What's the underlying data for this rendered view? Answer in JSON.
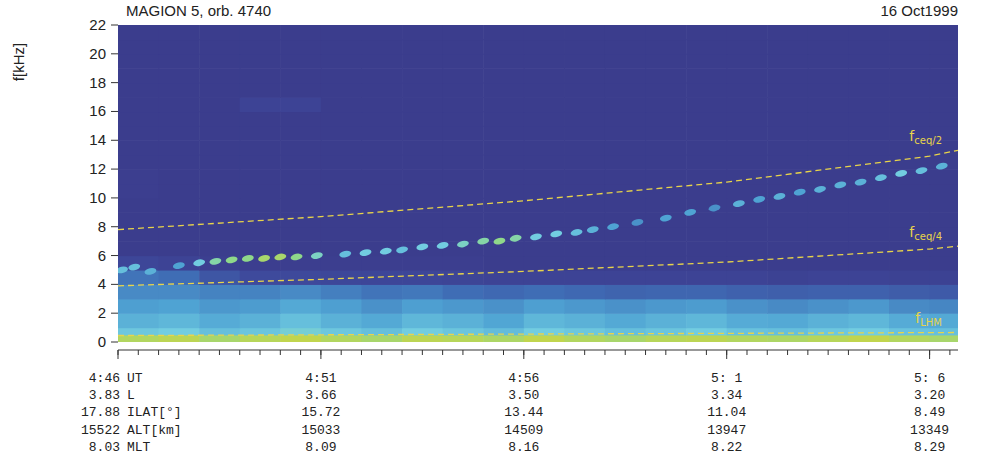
{
  "chart_data": {
    "type": "heatmap",
    "title": "MAGION 5, orb. 4740",
    "date": "16 Oct1999",
    "ylabel": "f[kHz]",
    "xlabel": "UT",
    "xlim": [
      286,
      306.7
    ],
    "ylim": [
      0,
      22
    ],
    "xticks": [
      {
        "value": 286,
        "label": "4:46"
      },
      {
        "value": 291,
        "label": "4:51"
      },
      {
        "value": 296,
        "label": "4:56"
      },
      {
        "value": 301,
        "label": "5: 1"
      },
      {
        "value": 306,
        "label": "5: 6"
      }
    ],
    "xminor": [
      286,
      286.5,
      287,
      287.5,
      288,
      288.5,
      289,
      289.5,
      290,
      290.5,
      291,
      291.5,
      292,
      292.5,
      293,
      293.5,
      294,
      294.5,
      295,
      295.5,
      296,
      296.5,
      297,
      297.5,
      298,
      298.5,
      299,
      299.5,
      300,
      300.5,
      301,
      301.5,
      302,
      302.5,
      303,
      303.5,
      304,
      304.5,
      305,
      305.5,
      306,
      306.5
    ],
    "yticks": [
      0,
      2,
      4,
      6,
      8,
      10,
      12,
      14,
      16,
      18,
      20,
      22
    ],
    "ephemeris": [
      {
        "name": "L",
        "values": [
          "3.83",
          "3.66",
          "3.50",
          "3.34",
          "3.20"
        ]
      },
      {
        "name": "ILAT[°]",
        "values": [
          "17.88",
          "15.72",
          "13.44",
          "11.04",
          "8.49"
        ]
      },
      {
        "name": "ALT[km]",
        "values": [
          "15522",
          "15033",
          "14509",
          "13947",
          "13349"
        ]
      },
      {
        "name": "MLT",
        "values": [
          "8.03",
          "8.09",
          "8.16",
          "8.22",
          "8.29"
        ]
      }
    ],
    "intensity_range": [
      0,
      1
    ],
    "x_edges": [
      286,
      287,
      288,
      289,
      290,
      291,
      292,
      293,
      294,
      295,
      296,
      297,
      298,
      299,
      300,
      301,
      302,
      303,
      304,
      305,
      306,
      306.7
    ],
    "y_edges": [
      0,
      0.5,
      1,
      2,
      3,
      4,
      5,
      6,
      7,
      8,
      9,
      10,
      11,
      12,
      13,
      14,
      15,
      16,
      17,
      18,
      19,
      20,
      21,
      22
    ],
    "cells": [
      [
        0.82,
        0.84,
        0.8,
        0.83,
        0.85,
        0.82,
        0.8,
        0.84,
        0.83,
        0.81,
        0.85,
        0.82,
        0.8,
        0.83,
        0.84,
        0.82,
        0.81,
        0.83,
        0.85,
        0.82,
        0.8
      ],
      [
        0.58,
        0.6,
        0.55,
        0.57,
        0.62,
        0.58,
        0.55,
        0.6,
        0.57,
        0.54,
        0.6,
        0.58,
        0.55,
        0.57,
        0.6,
        0.56,
        0.55,
        0.58,
        0.6,
        0.56,
        0.55
      ],
      [
        0.5,
        0.52,
        0.48,
        0.5,
        0.55,
        0.5,
        0.47,
        0.52,
        0.5,
        0.46,
        0.52,
        0.5,
        0.47,
        0.5,
        0.52,
        0.48,
        0.47,
        0.5,
        0.52,
        0.48,
        0.47
      ],
      [
        0.44,
        0.45,
        0.42,
        0.43,
        0.47,
        0.44,
        0.4,
        0.44,
        0.42,
        0.4,
        0.44,
        0.42,
        0.4,
        0.42,
        0.43,
        0.4,
        0.38,
        0.4,
        0.42,
        0.38,
        0.37
      ],
      [
        0.38,
        0.38,
        0.36,
        0.36,
        0.38,
        0.35,
        0.32,
        0.33,
        0.3,
        0.28,
        0.3,
        0.28,
        0.26,
        0.27,
        0.27,
        0.25,
        0.24,
        0.25,
        0.25,
        0.23,
        0.22
      ],
      [
        0.32,
        0.3,
        0.2,
        0.15,
        0.14,
        0.13,
        0.12,
        0.12,
        0.11,
        0.1,
        0.1,
        0.1,
        0.1,
        0.1,
        0.1,
        0.1,
        0.09,
        0.1,
        0.1,
        0.09,
        0.09
      ],
      [
        0.12,
        0.1,
        0.07,
        0.06,
        0.06,
        0.06,
        0.06,
        0.06,
        0.06,
        0.05,
        0.05,
        0.05,
        0.05,
        0.05,
        0.05,
        0.05,
        0.05,
        0.05,
        0.05,
        0.05,
        0.05
      ],
      [
        0.05,
        0.05,
        0.05,
        0.05,
        0.05,
        0.05,
        0.05,
        0.05,
        0.05,
        0.05,
        0.05,
        0.05,
        0.05,
        0.05,
        0.05,
        0.05,
        0.05,
        0.05,
        0.05,
        0.05,
        0.05
      ],
      [
        0.05,
        0.05,
        0.05,
        0.05,
        0.05,
        0.05,
        0.05,
        0.05,
        0.05,
        0.05,
        0.05,
        0.05,
        0.05,
        0.05,
        0.05,
        0.05,
        0.05,
        0.05,
        0.05,
        0.05,
        0.05
      ],
      [
        0.05,
        0.05,
        0.05,
        0.05,
        0.05,
        0.05,
        0.05,
        0.05,
        0.05,
        0.05,
        0.05,
        0.05,
        0.05,
        0.05,
        0.05,
        0.05,
        0.05,
        0.05,
        0.05,
        0.05,
        0.05
      ],
      [
        0.05,
        0.05,
        0.05,
        0.05,
        0.05,
        0.05,
        0.05,
        0.05,
        0.05,
        0.05,
        0.05,
        0.05,
        0.05,
        0.05,
        0.05,
        0.05,
        0.05,
        0.05,
        0.05,
        0.05,
        0.05
      ],
      [
        0.06,
        0.05,
        0.05,
        0.05,
        0.05,
        0.05,
        0.05,
        0.05,
        0.05,
        0.05,
        0.05,
        0.05,
        0.05,
        0.05,
        0.05,
        0.05,
        0.05,
        0.05,
        0.05,
        0.05,
        0.05
      ],
      [
        0.06,
        0.05,
        0.05,
        0.05,
        0.05,
        0.05,
        0.05,
        0.05,
        0.05,
        0.05,
        0.05,
        0.05,
        0.05,
        0.05,
        0.05,
        0.05,
        0.05,
        0.05,
        0.05,
        0.05,
        0.05
      ],
      [
        0.05,
        0.05,
        0.05,
        0.05,
        0.05,
        0.05,
        0.05,
        0.05,
        0.05,
        0.05,
        0.05,
        0.05,
        0.05,
        0.05,
        0.05,
        0.05,
        0.05,
        0.05,
        0.05,
        0.05,
        0.05
      ],
      [
        0.05,
        0.05,
        0.05,
        0.05,
        0.05,
        0.05,
        0.05,
        0.05,
        0.05,
        0.05,
        0.05,
        0.05,
        0.05,
        0.05,
        0.05,
        0.05,
        0.05,
        0.05,
        0.05,
        0.05,
        0.05
      ],
      [
        0.05,
        0.05,
        0.05,
        0.05,
        0.05,
        0.05,
        0.05,
        0.05,
        0.05,
        0.05,
        0.05,
        0.05,
        0.05,
        0.05,
        0.05,
        0.05,
        0.05,
        0.05,
        0.05,
        0.05,
        0.05
      ],
      [
        0.05,
        0.05,
        0.05,
        0.05,
        0.05,
        0.05,
        0.05,
        0.05,
        0.05,
        0.05,
        0.05,
        0.05,
        0.05,
        0.05,
        0.05,
        0.05,
        0.05,
        0.05,
        0.05,
        0.05,
        0.05
      ],
      [
        0.05,
        0.05,
        0.05,
        0.1,
        0.1,
        0.05,
        0.05,
        0.05,
        0.05,
        0.05,
        0.05,
        0.05,
        0.05,
        0.05,
        0.05,
        0.05,
        0.05,
        0.05,
        0.05,
        0.05,
        0.05
      ],
      [
        0.05,
        0.05,
        0.05,
        0.05,
        0.05,
        0.05,
        0.05,
        0.05,
        0.05,
        0.05,
        0.05,
        0.05,
        0.05,
        0.05,
        0.05,
        0.05,
        0.05,
        0.05,
        0.05,
        0.05,
        0.05
      ],
      [
        0.05,
        0.05,
        0.05,
        0.05,
        0.05,
        0.05,
        0.05,
        0.05,
        0.05,
        0.05,
        0.05,
        0.05,
        0.05,
        0.05,
        0.05,
        0.05,
        0.05,
        0.05,
        0.05,
        0.05,
        0.05
      ],
      [
        0.05,
        0.05,
        0.05,
        0.05,
        0.05,
        0.05,
        0.05,
        0.05,
        0.05,
        0.05,
        0.05,
        0.05,
        0.05,
        0.05,
        0.05,
        0.05,
        0.05,
        0.05,
        0.05,
        0.05,
        0.05
      ],
      [
        0.05,
        0.05,
        0.05,
        0.05,
        0.05,
        0.05,
        0.05,
        0.05,
        0.05,
        0.05,
        0.05,
        0.05,
        0.05,
        0.05,
        0.05,
        0.05,
        0.05,
        0.05,
        0.05,
        0.05,
        0.05
      ],
      [
        0.05,
        0.05,
        0.05,
        0.05,
        0.05,
        0.05,
        0.05,
        0.05,
        0.05,
        0.05,
        0.05,
        0.05,
        0.05,
        0.05,
        0.05,
        0.05,
        0.05,
        0.05,
        0.05,
        0.05,
        0.05
      ]
    ],
    "emissions": {
      "x": [
        286.1,
        286.4,
        286.8,
        287.5,
        288.0,
        288.4,
        288.8,
        289.2,
        289.6,
        290.0,
        290.4,
        290.9,
        291.6,
        292.1,
        292.6,
        293.0,
        293.5,
        294.0,
        294.5,
        295.0,
        295.4,
        295.8,
        296.3,
        296.8,
        297.3,
        297.7,
        298.2,
        298.8,
        299.5,
        300.1,
        300.7,
        301.3,
        301.8,
        302.3,
        302.8,
        303.3,
        303.8,
        304.3,
        304.8,
        305.3,
        305.8,
        306.3
      ],
      "y": [
        5.0,
        5.2,
        4.9,
        5.3,
        5.5,
        5.6,
        5.7,
        5.8,
        5.8,
        5.9,
        5.9,
        6.0,
        6.1,
        6.2,
        6.3,
        6.4,
        6.6,
        6.7,
        6.8,
        7.0,
        7.0,
        7.2,
        7.3,
        7.5,
        7.6,
        7.8,
        8.0,
        8.3,
        8.6,
        9.0,
        9.3,
        9.6,
        9.9,
        10.1,
        10.4,
        10.6,
        10.9,
        11.1,
        11.4,
        11.7,
        11.9,
        12.2
      ],
      "intensity": [
        0.55,
        0.55,
        0.5,
        0.45,
        0.6,
        0.7,
        0.75,
        0.75,
        0.8,
        0.8,
        0.75,
        0.65,
        0.55,
        0.6,
        0.6,
        0.55,
        0.6,
        0.6,
        0.65,
        0.7,
        0.75,
        0.7,
        0.6,
        0.6,
        0.55,
        0.5,
        0.45,
        0.4,
        0.45,
        0.45,
        0.4,
        0.5,
        0.45,
        0.5,
        0.45,
        0.5,
        0.5,
        0.5,
        0.55,
        0.6,
        0.55,
        0.5
      ]
    },
    "series": [
      {
        "name": "fceq/2",
        "color": "#e8d44a",
        "line_style": "dashed",
        "x": [
          286,
          291,
          296,
          301,
          306,
          306.7
        ],
        "values": [
          7.8,
          8.7,
          9.8,
          11.1,
          12.9,
          13.3
        ]
      },
      {
        "name": "fceq/4",
        "color": "#e8d44a",
        "line_style": "dashed",
        "x": [
          286,
          291,
          296,
          301,
          306,
          306.7
        ],
        "values": [
          3.9,
          4.35,
          4.9,
          5.55,
          6.45,
          6.65
        ]
      },
      {
        "name": "fLHM",
        "color": "#e8d44a",
        "line_style": "dashed",
        "x": [
          286,
          291,
          296,
          301,
          306,
          306.7
        ],
        "values": [
          0.45,
          0.5,
          0.55,
          0.6,
          0.65,
          0.66
        ]
      }
    ]
  }
}
